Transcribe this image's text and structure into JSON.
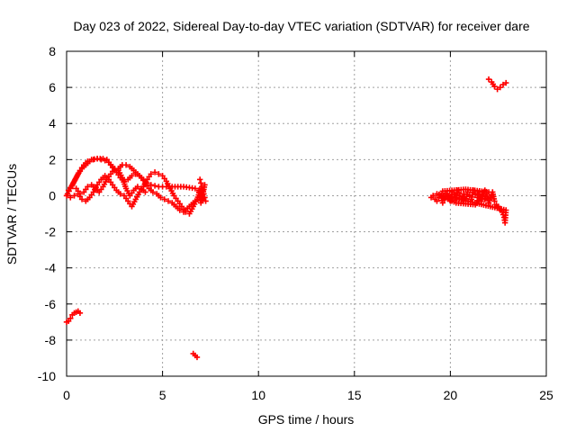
{
  "chart_data": {
    "type": "scatter",
    "title": "Day 023 of 2022, Sidereal Day-to-day VTEC variation (SDTVAR) for receiver dare",
    "xlabel": "GPS time / hours",
    "ylabel": "SDTVAR / TECUs",
    "xlim": [
      0,
      25
    ],
    "ylim": [
      -10,
      8
    ],
    "xticks": [
      0,
      5,
      10,
      15,
      20,
      25
    ],
    "xtick_labels": [
      "0",
      "5",
      "10",
      "15",
      "20",
      "25"
    ],
    "yticks": [
      8,
      6,
      4,
      2,
      0,
      -2,
      -4,
      -6,
      -8,
      -10
    ],
    "ytick_labels": [
      "8",
      "6",
      "4",
      "2",
      "0",
      "-2",
      "-4",
      "-6",
      "-8",
      "-10"
    ],
    "grid": true,
    "marker_color": "#ff0000",
    "series": [
      {
        "name": "upper-arc",
        "points": [
          [
            0.05,
            0.1
          ],
          [
            0.2,
            0.4
          ],
          [
            0.4,
            0.8
          ],
          [
            0.6,
            1.2
          ],
          [
            0.8,
            1.5
          ],
          [
            1.0,
            1.7
          ],
          [
            1.2,
            1.9
          ],
          [
            1.4,
            2.0
          ],
          [
            1.6,
            2.05
          ],
          [
            1.8,
            2.0
          ],
          [
            2.0,
            1.95
          ],
          [
            2.2,
            1.85
          ],
          [
            2.4,
            1.6
          ],
          [
            2.6,
            1.3
          ],
          [
            2.8,
            1.0
          ],
          [
            3.0,
            0.8
          ],
          [
            3.2,
            0.9
          ],
          [
            3.4,
            1.1
          ],
          [
            3.6,
            1.2
          ],
          [
            3.8,
            1.1
          ],
          [
            4.0,
            0.9
          ],
          [
            4.2,
            0.7
          ],
          [
            4.4,
            0.6
          ],
          [
            4.6,
            0.55
          ],
          [
            4.8,
            0.5
          ],
          [
            5.0,
            0.5
          ],
          [
            5.2,
            0.5
          ],
          [
            5.5,
            0.5
          ],
          [
            5.8,
            0.5
          ],
          [
            6.1,
            0.5
          ],
          [
            6.4,
            0.45
          ],
          [
            6.7,
            0.4
          ],
          [
            6.9,
            0.3
          ]
        ]
      },
      {
        "name": "mid-arc",
        "points": [
          [
            0.1,
            0.3
          ],
          [
            0.3,
            0.6
          ],
          [
            0.5,
            1.0
          ],
          [
            0.7,
            1.4
          ],
          [
            0.9,
            1.7
          ],
          [
            1.1,
            1.9
          ],
          [
            1.3,
            2.0
          ],
          [
            1.6,
            2.05
          ],
          [
            1.9,
            2.05
          ],
          [
            2.1,
            2.0
          ],
          [
            2.3,
            1.7
          ],
          [
            2.5,
            1.4
          ],
          [
            2.7,
            1.5
          ],
          [
            2.9,
            1.7
          ],
          [
            3.1,
            1.7
          ],
          [
            3.3,
            1.6
          ],
          [
            3.5,
            1.4
          ],
          [
            3.7,
            1.2
          ],
          [
            3.9,
            1.0
          ],
          [
            4.1,
            0.7
          ],
          [
            4.3,
            0.4
          ],
          [
            4.5,
            0.2
          ],
          [
            4.7,
            0.1
          ],
          [
            4.9,
            -0.1
          ],
          [
            5.1,
            -0.2
          ],
          [
            5.3,
            -0.3
          ],
          [
            5.5,
            -0.4
          ],
          [
            5.7,
            -0.6
          ],
          [
            5.9,
            -0.8
          ],
          [
            6.1,
            -0.9
          ],
          [
            6.3,
            -0.7
          ],
          [
            6.5,
            -0.5
          ],
          [
            6.7,
            -0.3
          ]
        ]
      },
      {
        "name": "lower-arc",
        "points": [
          [
            0.0,
            0.0
          ],
          [
            0.2,
            -0.1
          ],
          [
            0.4,
            0.0
          ],
          [
            0.6,
            0.1
          ],
          [
            0.8,
            -0.2
          ],
          [
            1.0,
            -0.3
          ],
          [
            1.2,
            -0.1
          ],
          [
            1.4,
            0.2
          ],
          [
            1.6,
            0.6
          ],
          [
            1.8,
            0.9
          ],
          [
            2.0,
            1.1
          ],
          [
            2.2,
            0.9
          ],
          [
            2.4,
            0.6
          ],
          [
            2.6,
            0.3
          ],
          [
            2.8,
            0.1
          ],
          [
            3.0,
            0.0
          ],
          [
            3.2,
            -0.3
          ],
          [
            3.4,
            -0.6
          ],
          [
            3.6,
            -0.2
          ],
          [
            3.8,
            0.2
          ],
          [
            4.0,
            0.5
          ],
          [
            4.2,
            0.9
          ],
          [
            4.4,
            1.2
          ],
          [
            4.6,
            1.3
          ],
          [
            4.8,
            1.2
          ],
          [
            5.0,
            1.1
          ],
          [
            5.2,
            0.8
          ],
          [
            5.4,
            0.4
          ],
          [
            5.6,
            0.0
          ],
          [
            5.8,
            -0.3
          ],
          [
            6.0,
            -0.6
          ],
          [
            6.2,
            -0.9
          ],
          [
            6.4,
            -1.0
          ],
          [
            6.6,
            -0.6
          ],
          [
            6.8,
            -0.2
          ],
          [
            7.0,
            0.4
          ]
        ]
      },
      {
        "name": "curl-arc",
        "points": [
          [
            0.5,
            0.4
          ],
          [
            0.7,
            0.1
          ],
          [
            0.9,
            0.2
          ],
          [
            1.1,
            0.5
          ],
          [
            1.3,
            0.6
          ],
          [
            1.5,
            0.4
          ],
          [
            1.7,
            0.2
          ],
          [
            1.9,
            0.5
          ],
          [
            2.1,
            0.9
          ],
          [
            2.3,
            1.2
          ],
          [
            2.5,
            1.5
          ],
          [
            2.7,
            1.4
          ],
          [
            2.9,
            1.0
          ],
          [
            3.1,
            0.4
          ],
          [
            3.3,
            0.0
          ],
          [
            3.5,
            0.3
          ],
          [
            3.7,
            0.5
          ],
          [
            3.9,
            0.4
          ],
          [
            4.1,
            0.2
          ]
        ]
      },
      {
        "name": "end-cluster-7h",
        "points": [
          [
            6.95,
            0.9
          ],
          [
            7.0,
            0.7
          ],
          [
            7.05,
            0.5
          ],
          [
            7.1,
            0.3
          ],
          [
            7.15,
            0.1
          ],
          [
            7.2,
            -0.1
          ],
          [
            7.25,
            -0.3
          ],
          [
            7.1,
            -0.2
          ],
          [
            6.95,
            0.0
          ],
          [
            6.9,
            0.2
          ],
          [
            7.0,
            -0.4
          ],
          [
            7.2,
            0.6
          ]
        ]
      },
      {
        "name": "early-negative",
        "points": [
          [
            0.0,
            -7.0
          ],
          [
            0.1,
            -6.95
          ],
          [
            0.2,
            -6.8
          ],
          [
            0.3,
            -6.6
          ],
          [
            0.4,
            -6.5
          ],
          [
            0.5,
            -6.45
          ],
          [
            0.6,
            -6.4
          ],
          [
            0.7,
            -6.5
          ]
        ]
      },
      {
        "name": "isolated-6.7h",
        "points": [
          [
            6.6,
            -8.75
          ],
          [
            6.7,
            -8.85
          ],
          [
            6.8,
            -8.95
          ]
        ]
      },
      {
        "name": "late-band",
        "points": [
          [
            19.0,
            -0.1
          ],
          [
            19.1,
            0.0
          ],
          [
            19.2,
            -0.2
          ],
          [
            19.3,
            -0.3
          ],
          [
            19.4,
            -0.1
          ],
          [
            19.5,
            0.0
          ],
          [
            19.6,
            -0.4
          ],
          [
            19.7,
            -0.2
          ],
          [
            19.8,
            0.1
          ],
          [
            19.9,
            0.0
          ],
          [
            20.0,
            -0.3
          ],
          [
            20.1,
            0.2
          ],
          [
            20.2,
            0.1
          ],
          [
            20.3,
            -0.1
          ],
          [
            20.4,
            0.3
          ],
          [
            20.5,
            0.0
          ],
          [
            20.6,
            -0.2
          ],
          [
            20.7,
            0.1
          ],
          [
            20.8,
            -0.3
          ],
          [
            20.9,
            0.2
          ],
          [
            21.0,
            0.0
          ],
          [
            21.1,
            -0.2
          ],
          [
            21.2,
            0.3
          ],
          [
            21.3,
            0.1
          ],
          [
            21.4,
            -0.1
          ],
          [
            21.5,
            0.2
          ],
          [
            21.6,
            -0.3
          ],
          [
            21.7,
            0.0
          ],
          [
            21.8,
            -0.2
          ],
          [
            21.9,
            0.1
          ],
          [
            22.0,
            -0.4
          ],
          [
            22.1,
            -0.1
          ],
          [
            22.2,
            0.2
          ],
          [
            22.3,
            -0.3
          ],
          [
            22.4,
            -0.5
          ],
          [
            22.5,
            -0.6
          ],
          [
            22.6,
            -0.8
          ],
          [
            22.7,
            -0.9
          ],
          [
            22.8,
            -1.2
          ],
          [
            22.85,
            -1.5
          ],
          [
            22.9,
            -0.8
          ],
          [
            19.3,
            0.1
          ],
          [
            20.3,
            -0.4
          ],
          [
            21.3,
            -0.5
          ],
          [
            21.8,
            0.3
          ],
          [
            22.0,
            0.2
          ],
          [
            20.8,
            0.35
          ],
          [
            19.6,
            0.25
          ]
        ]
      },
      {
        "name": "late-high",
        "points": [
          [
            22.0,
            6.45
          ],
          [
            22.15,
            6.3
          ],
          [
            22.3,
            6.05
          ],
          [
            22.45,
            5.9
          ],
          [
            22.6,
            6.0
          ],
          [
            22.75,
            6.15
          ],
          [
            22.9,
            6.25
          ]
        ]
      }
    ]
  }
}
